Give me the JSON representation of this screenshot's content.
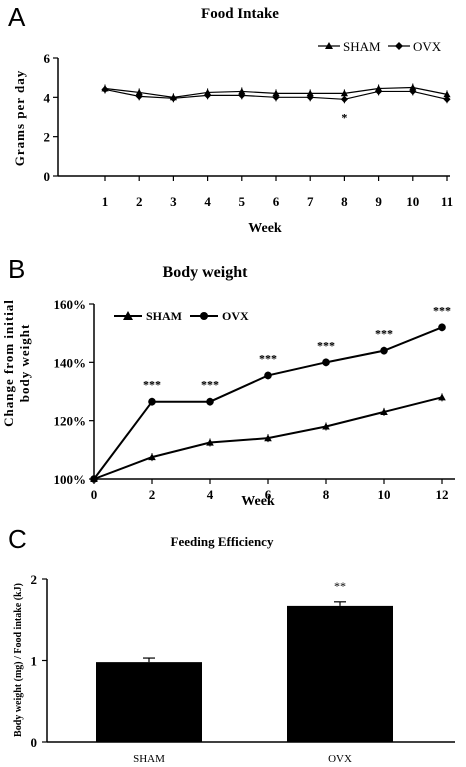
{
  "panels": {
    "a": {
      "letter": "A"
    },
    "b": {
      "letter": "B"
    },
    "c": {
      "letter": "C"
    }
  },
  "chart_data": [
    {
      "type": "line",
      "title": "Food Intake",
      "xlabel": "Week",
      "ylabel": "Grams per day",
      "x": [
        1,
        2,
        3,
        4,
        5,
        6,
        7,
        8,
        9,
        10,
        11
      ],
      "ylim": [
        0,
        6
      ],
      "yticks": [
        0,
        2,
        4,
        6
      ],
      "legend_position": "top-right",
      "series": [
        {
          "name": "SHAM",
          "marker": "triangle",
          "values": [
            4.45,
            4.25,
            4.0,
            4.25,
            4.3,
            4.2,
            4.2,
            4.2,
            4.45,
            4.5,
            4.15
          ]
        },
        {
          "name": "OVX",
          "marker": "diamond",
          "values": [
            4.4,
            4.05,
            3.95,
            4.1,
            4.1,
            4.0,
            4.0,
            3.9,
            4.3,
            4.3,
            3.9
          ]
        }
      ],
      "annotations": [
        {
          "x": 8,
          "text": "*"
        }
      ]
    },
    {
      "type": "line",
      "title": "Body weight",
      "xlabel": "Week",
      "ylabel_line1": "Change from initial",
      "ylabel_line2": "body weight",
      "x": [
        0,
        2,
        4,
        6,
        8,
        10,
        12
      ],
      "ylim": [
        100,
        160
      ],
      "yticks": [
        "100%",
        "120%",
        "140%",
        "160%"
      ],
      "ytick_values": [
        100,
        120,
        140,
        160
      ],
      "legend_position": "top-left",
      "series": [
        {
          "name": "SHAM",
          "marker": "triangle",
          "values": [
            100,
            107.5,
            112.5,
            114,
            118,
            123,
            128
          ]
        },
        {
          "name": "OVX",
          "marker": "circle",
          "values": [
            100,
            126.5,
            126.5,
            135.5,
            140,
            144,
            152
          ]
        }
      ],
      "annotations": [
        {
          "x": 2,
          "text": "***"
        },
        {
          "x": 4,
          "text": "***"
        },
        {
          "x": 6,
          "text": "***"
        },
        {
          "x": 8,
          "text": "***"
        },
        {
          "x": 10,
          "text": "***"
        },
        {
          "x": 12,
          "text": "***"
        }
      ]
    },
    {
      "type": "bar",
      "title": "Feeding Efficiency",
      "ylabel": "Body weight (mg) / Food intake (kJ)",
      "categories": [
        "SHAM",
        "OVX"
      ],
      "values": [
        0.98,
        1.67
      ],
      "errors": [
        0.05,
        0.05
      ],
      "ylim": [
        0,
        2
      ],
      "yticks": [
        0,
        1,
        2
      ],
      "annotations": [
        {
          "category": "OVX",
          "text": "**"
        }
      ]
    }
  ]
}
